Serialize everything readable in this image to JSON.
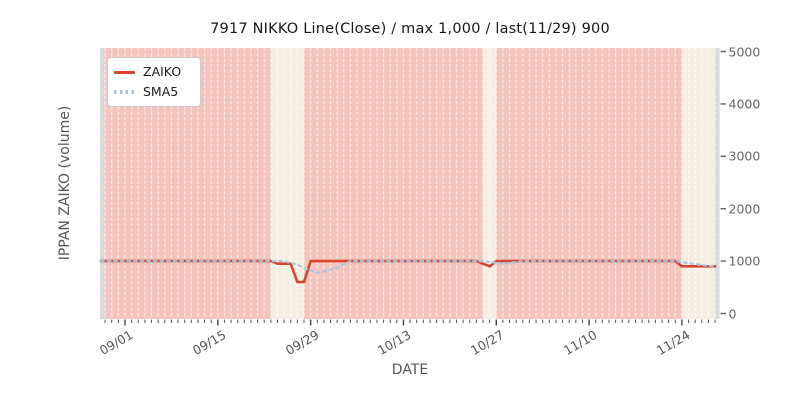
{
  "title": "7917 NIKKO Line(Close) / max 1,000 / last(11/29) 900",
  "x_axis": {
    "label": "DATE",
    "tick_labels": [
      "09/01",
      "09/15",
      "09/29",
      "10/13",
      "10/27",
      "11/10",
      "11/24"
    ]
  },
  "y_axis": {
    "label": "IPPAN ZAIKO (volume)",
    "tick_labels": [
      "0",
      "1000",
      "2000",
      "3000",
      "4000",
      "5000"
    ]
  },
  "legend": {
    "items": [
      {
        "label": "ZAIKO",
        "style": "solid",
        "color": "#d8452f"
      },
      {
        "label": "SMA5",
        "style": "dotted",
        "color": "#a4c5de"
      }
    ]
  },
  "chart_data": {
    "type": "line",
    "title": "7917 NIKKO Line(Close) / max 1,000 / last(11/29) 900",
    "xlabel": "DATE",
    "ylabel": "IPPAN ZAIKO (volume)",
    "ylim": [
      0,
      5000
    ],
    "y_ticks": [
      0,
      1000,
      2000,
      3000,
      4000,
      5000
    ],
    "x_range": [
      "08/28",
      "11/30"
    ],
    "x_tick_dates": [
      "09/01",
      "09/15",
      "09/29",
      "10/13",
      "10/27",
      "11/10",
      "11/24"
    ],
    "grid": "vertical-daily-dashed",
    "legend_position": "upper-left",
    "max_value": 1000,
    "last_date": "11/29",
    "last_value": 900,
    "series": [
      {
        "name": "ZAIKO",
        "style": "solid",
        "color": "#d8452f",
        "points": [
          [
            "09/01",
            1000
          ],
          [
            "09/23",
            1000
          ],
          [
            "09/24",
            950
          ],
          [
            "09/26",
            950
          ],
          [
            "09/27",
            600
          ],
          [
            "09/28",
            600
          ],
          [
            "09/29",
            1000
          ],
          [
            "10/24",
            1000
          ],
          [
            "10/26",
            900
          ],
          [
            "10/27",
            1000
          ],
          [
            "11/23",
            1000
          ],
          [
            "11/24",
            900
          ],
          [
            "11/29",
            900
          ]
        ]
      },
      {
        "name": "SMA5",
        "style": "dotted",
        "color": "#a4c5de",
        "points": [
          [
            "09/01",
            1000
          ],
          [
            "09/25",
            1000
          ],
          [
            "09/27",
            930
          ],
          [
            "09/29",
            820
          ],
          [
            "09/30",
            780
          ],
          [
            "10/01",
            800
          ],
          [
            "10/03",
            880
          ],
          [
            "10/05",
            1000
          ],
          [
            "10/25",
            1000
          ],
          [
            "10/28",
            950
          ],
          [
            "10/31",
            1000
          ],
          [
            "11/23",
            1000
          ],
          [
            "11/25",
            960
          ],
          [
            "11/27",
            925
          ],
          [
            "11/29",
            900
          ]
        ]
      }
    ],
    "bands": [
      {
        "from": "08/28",
        "to": "08/29",
        "color_key": "grey"
      },
      {
        "from": "09/23",
        "to": "09/28",
        "color_key": "cream"
      },
      {
        "from": "10/25",
        "to": "10/27",
        "color_key": "cream"
      },
      {
        "from": "11/24",
        "to": "11/29",
        "color_key": "cream"
      },
      {
        "from": "11/29",
        "to": "11/30",
        "color_key": "grey"
      }
    ],
    "colors": {
      "pink": "#f3c5bc",
      "cream": "#f5efe3",
      "grey": "#d9d9db",
      "grid": "rgba(255,255,255,0.68)"
    }
  }
}
